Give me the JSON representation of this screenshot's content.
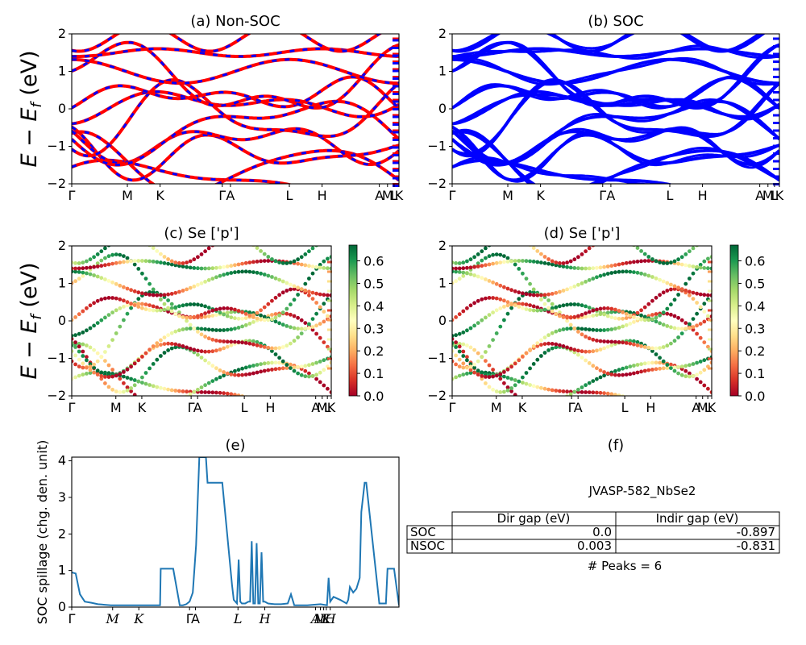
{
  "colors": {
    "red": "#ff0000",
    "blue": "#0000ff",
    "spillage_line": "#1f77b4",
    "colormap": [
      "#a50026",
      "#d73027",
      "#f46d43",
      "#fdae61",
      "#fee08b",
      "#ffffbf",
      "#d9ef8b",
      "#a6d96a",
      "#66bd63",
      "#1a9850",
      "#006837"
    ]
  },
  "ylabel_energy": "E − E_f (eV)",
  "kpath_labels": [
    "Γ",
    "M",
    "K",
    "Γ",
    "A",
    "L",
    "H",
    "A",
    "M",
    "L",
    "K"
  ],
  "panels": {
    "a": {
      "title": "(a) Non-SOC"
    },
    "b": {
      "title": "(b) SOC"
    },
    "c": {
      "title": "(c)  Se ['p']"
    },
    "d": {
      "title": "(d) Se ['p']"
    },
    "e": {
      "title": "(e)",
      "ylabel": "SOC spillage (chg. den. unit)"
    },
    "f": {
      "title": "(f)"
    }
  },
  "table": {
    "material": "JVASP-582_NbSe2",
    "headers": [
      "Dir gap (eV)",
      "Indir gap (eV)"
    ],
    "rows": [
      {
        "label": "SOC",
        "dir": "0.0",
        "indir": "-0.897"
      },
      {
        "label": "NSOC",
        "dir": "0.003",
        "indir": "-0.831"
      }
    ],
    "peaks": "# Peaks = 6"
  },
  "chart_data": [
    {
      "id": "a",
      "type": "line",
      "title": "(a) Non-SOC",
      "ylabel": "E − E_f (eV)",
      "ylim": [
        -2,
        2
      ],
      "yticks": [
        -2,
        -1,
        0,
        1,
        2
      ],
      "xticks": [
        {
          "label": "Γ",
          "k": 0.0
        },
        {
          "label": "M",
          "k": 0.17
        },
        {
          "label": "K",
          "k": 0.27
        },
        {
          "label": "Γ",
          "k": 0.46
        },
        {
          "label": "A",
          "k": 0.485
        },
        {
          "label": "L",
          "k": 0.665
        },
        {
          "label": "H",
          "k": 0.765
        },
        {
          "label": "A",
          "k": 0.94
        },
        {
          "label": "M",
          "k": 0.965
        },
        {
          "label": "L",
          "k": 0.985
        },
        {
          "label": "K",
          "k": 1.0
        }
      ],
      "series": [
        {
          "color": "red",
          "energies": [
            -1.9,
            -1.6,
            -1.2,
            -0.85,
            -0.5,
            -0.2,
            0.15,
            0.35,
            0.75,
            1.0,
            1.5,
            1.9
          ]
        },
        {
          "color": "blue",
          "energies": [
            -1.9,
            -1.6,
            -1.2,
            -0.85,
            -0.5,
            -0.2,
            0.15,
            0.35,
            0.75,
            1.0,
            1.5,
            1.9
          ]
        }
      ]
    },
    {
      "id": "b",
      "type": "line",
      "title": "(b) SOC",
      "ylim": [
        -2,
        2
      ],
      "yticks": [
        -2,
        -1,
        0,
        1,
        2
      ],
      "xticks": [
        {
          "label": "Γ",
          "k": 0.0
        },
        {
          "label": "M",
          "k": 0.17
        },
        {
          "label": "K",
          "k": 0.27
        },
        {
          "label": "Γ",
          "k": 0.46
        },
        {
          "label": "A",
          "k": 0.485
        },
        {
          "label": "L",
          "k": 0.665
        },
        {
          "label": "H",
          "k": 0.765
        },
        {
          "label": "A",
          "k": 0.94
        },
        {
          "label": "M",
          "k": 0.965
        },
        {
          "label": "L",
          "k": 0.985
        },
        {
          "label": "K",
          "k": 1.0
        }
      ],
      "series": [
        {
          "color": "blue",
          "energies": [
            -1.9,
            -1.6,
            -1.2,
            -0.85,
            -0.5,
            -0.2,
            0.15,
            0.35,
            0.75,
            1.0,
            1.5,
            1.9
          ]
        }
      ]
    },
    {
      "id": "c",
      "type": "scatter",
      "title": "(c)  Se ['p']",
      "ylabel": "E − E_f (eV)",
      "ylim": [
        -2,
        2
      ],
      "yticks": [
        -2,
        -1,
        0,
        1,
        2
      ],
      "colorbar": {
        "range": [
          0.0,
          0.67
        ],
        "ticks": [
          0.0,
          0.1,
          0.2,
          0.3,
          0.4,
          0.5,
          0.6
        ],
        "tick_labels": [
          "0.0",
          "0.1",
          "0.2",
          "0.3",
          "0.4",
          "0.5",
          "0.6"
        ]
      },
      "xticks": [
        {
          "label": "Γ",
          "k": 0.0
        },
        {
          "label": "M",
          "k": 0.17
        },
        {
          "label": "K",
          "k": 0.27
        },
        {
          "label": "Γ",
          "k": 0.46
        },
        {
          "label": "A",
          "k": 0.485
        },
        {
          "label": "L",
          "k": 0.665
        },
        {
          "label": "H",
          "k": 0.765
        },
        {
          "label": "A",
          "k": 0.94
        },
        {
          "label": "M",
          "k": 0.965
        },
        {
          "label": "L",
          "k": 0.985
        },
        {
          "label": "K",
          "k": 1.0
        }
      ]
    },
    {
      "id": "d",
      "type": "scatter",
      "title": "(d) Se ['p']",
      "ylim": [
        -2,
        2
      ],
      "yticks": [
        -2,
        -1,
        0,
        1,
        2
      ],
      "colorbar": {
        "range": [
          0.0,
          0.67
        ],
        "ticks": [
          0.0,
          0.1,
          0.2,
          0.3,
          0.4,
          0.5,
          0.6
        ],
        "tick_labels": [
          "0.0",
          "0.1",
          "0.2",
          "0.3",
          "0.4",
          "0.5",
          "0.6"
        ]
      },
      "xticks": [
        {
          "label": "Γ",
          "k": 0.0
        },
        {
          "label": "M",
          "k": 0.17
        },
        {
          "label": "K",
          "k": 0.27
        },
        {
          "label": "Γ",
          "k": 0.46
        },
        {
          "label": "A",
          "k": 0.485
        },
        {
          "label": "L",
          "k": 0.665
        },
        {
          "label": "H",
          "k": 0.765
        },
        {
          "label": "A",
          "k": 0.94
        },
        {
          "label": "M",
          "k": 0.965
        },
        {
          "label": "L",
          "k": 0.985
        },
        {
          "label": "K",
          "k": 1.0
        }
      ]
    },
    {
      "id": "e",
      "type": "line",
      "title": "(e)",
      "ylabel": "SOC spillage (chg. den. unit)",
      "ylim": [
        0,
        4.1
      ],
      "yticks": [
        0,
        1,
        2,
        3,
        4
      ],
      "xlim": [
        0,
        1
      ],
      "xticks": [
        {
          "label": "Γ",
          "k": 0.0,
          "italic": false
        },
        {
          "label": "M",
          "k": 0.125,
          "italic": true
        },
        {
          "label": "K",
          "k": 0.205,
          "italic": true
        },
        {
          "label": "Γ",
          "k": 0.36,
          "italic": false
        },
        {
          "label": "A",
          "k": 0.378,
          "italic": false
        },
        {
          "label": "L",
          "k": 0.508,
          "italic": true
        },
        {
          "label": "H",
          "k": 0.59,
          "italic": true
        },
        {
          "label": "A",
          "k": 0.745,
          "italic": true
        },
        {
          "label": "M",
          "k": 0.76,
          "italic": true
        },
        {
          "label": "L",
          "k": 0.77,
          "italic": true
        },
        {
          "label": "K",
          "k": 0.778,
          "italic": true
        },
        {
          "label": "H",
          "k": 0.79,
          "italic": true
        }
      ],
      "series": [
        {
          "name": "",
          "x": [
            0.0,
            0.012,
            0.025,
            0.04,
            0.06,
            0.08,
            0.12,
            0.16,
            0.2,
            0.23,
            0.235,
            0.27,
            0.272,
            0.28,
            0.31,
            0.33,
            0.34,
            0.35,
            0.36,
            0.37,
            0.38,
            0.39,
            0.4,
            0.41,
            0.415,
            0.455,
            0.46,
            0.49,
            0.495,
            0.5,
            0.505,
            0.51,
            0.515,
            0.52,
            0.53,
            0.54,
            0.545,
            0.55,
            0.555,
            0.56,
            0.565,
            0.57,
            0.575,
            0.58,
            0.585,
            0.59,
            0.6,
            0.62,
            0.64,
            0.66,
            0.67,
            0.68,
            0.69,
            0.72,
            0.76,
            0.78,
            0.785,
            0.79,
            0.8,
            0.82,
            0.84,
            0.845,
            0.85,
            0.86,
            0.87,
            0.88,
            0.885,
            0.895,
            0.9,
            0.94,
            0.945,
            0.96,
            0.965,
            0.97,
            0.985,
            1.0
          ],
          "y": [
            0.95,
            0.92,
            0.35,
            0.15,
            0.12,
            0.08,
            0.05,
            0.05,
            0.05,
            0.05,
            0.05,
            0.05,
            1.05,
            1.05,
            1.05,
            0.05,
            0.05,
            0.08,
            0.15,
            0.4,
            1.7,
            4.1,
            4.1,
            4.1,
            3.4,
            3.4,
            3.4,
            0.6,
            0.2,
            0.15,
            0.1,
            1.3,
            0.15,
            0.1,
            0.1,
            0.15,
            0.15,
            1.8,
            0.1,
            0.1,
            1.75,
            0.1,
            0.1,
            1.5,
            0.15,
            0.15,
            0.1,
            0.08,
            0.08,
            0.1,
            0.35,
            0.05,
            0.05,
            0.05,
            0.08,
            0.05,
            0.8,
            0.15,
            0.28,
            0.2,
            0.1,
            0.2,
            0.55,
            0.4,
            0.5,
            0.8,
            2.6,
            3.4,
            3.4,
            0.1,
            0.1,
            0.1,
            1.05,
            1.05,
            1.05,
            0.05
          ]
        }
      ]
    }
  ]
}
